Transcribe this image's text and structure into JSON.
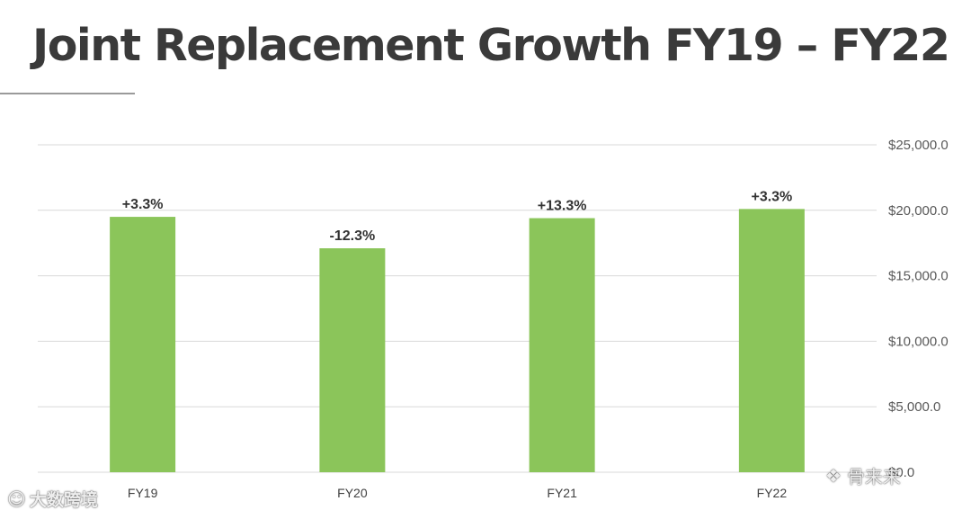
{
  "slide": {
    "title": "Joint Replacement Growth FY19 – FY22"
  },
  "chart_data": {
    "type": "bar",
    "categories": [
      "FY19",
      "FY20",
      "FY21",
      "FY22"
    ],
    "values": [
      19500,
      17100,
      19400,
      20100
    ],
    "data_labels": [
      "+3.3%",
      "-12.3%",
      "+13.3%",
      "+3.3%"
    ],
    "y_ticks": [
      "$0.0",
      "$5,000.0",
      "$10,000.0",
      "$15,000.0",
      "$20,000.0",
      "$25,000.0"
    ],
    "ylim": [
      0,
      25000
    ],
    "y_axis_position": "right",
    "grid": true,
    "bar_color": "#8BC55A",
    "grid_color": "#d9d9d9",
    "title": "",
    "xlabel": "",
    "ylabel": ""
  },
  "watermarks": {
    "left_text": "大数跨境",
    "left_icon": "shop-logo-icon",
    "right_text": "骨来来",
    "right_icon": "wechat-icon"
  }
}
